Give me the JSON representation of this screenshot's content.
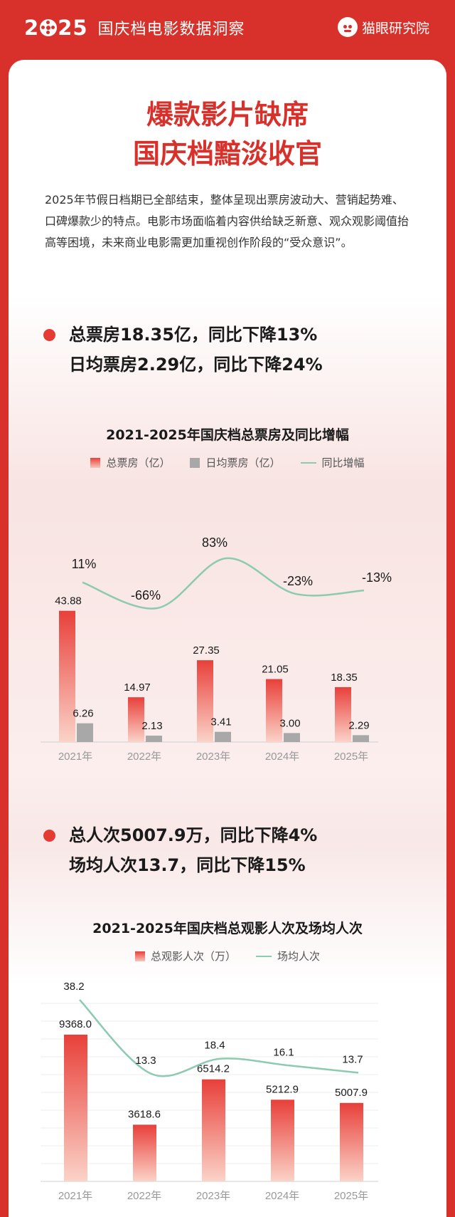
{
  "header": {
    "year": "2025",
    "year_parts": [
      "2",
      "25"
    ],
    "title": "国庆档电影数据洞察",
    "brand": "猫眼研究院"
  },
  "headline": {
    "line1": "爆款影片缺席",
    "line2": "国庆档黯淡收官"
  },
  "intro": "2025年节假日档期已全部结束，整体呈现出票房波动大、营销起势难、口碑爆款少的特点。电影市场面临着内容供给缺乏新意、观众观影阈值抬高等困境，未来商业电影需更加重视创作阶段的“受众意识”。",
  "section1": {
    "kpi1": "总票房18.35亿，同比下降13%",
    "kpi2": "日均票房2.29亿，同比下降24%"
  },
  "section2": {
    "kpi1": "总人次5007.9万，同比下降4%",
    "kpi2": "场均人次13.7，同比下降15%"
  },
  "colors": {
    "brand_red": "#d8312b",
    "bar_top": "#e8403a",
    "bar_bottom": "#fbd3c8",
    "grey_bar": "#a8a8a8",
    "line_green": "#8ccbb0"
  },
  "chart_data": [
    {
      "type": "bar",
      "title": "2021-2025年国庆档总票房及同比增幅",
      "categories": [
        "2021年",
        "2022年",
        "2023年",
        "2024年",
        "2025年"
      ],
      "series": [
        {
          "name": "总票房（亿）",
          "type": "bar",
          "values": [
            43.88,
            14.97,
            27.35,
            21.05,
            18.35
          ],
          "labels": [
            "43.88",
            "14.97",
            "27.35",
            "21.05",
            "18.35"
          ]
        },
        {
          "name": "日均票房（亿）",
          "type": "bar",
          "values": [
            6.26,
            2.13,
            3.41,
            3.0,
            2.29
          ],
          "labels": [
            "6.26",
            "2.13",
            "3.41",
            "3.00",
            "2.29"
          ]
        },
        {
          "name": "同比增幅",
          "type": "line",
          "values": [
            11,
            -66,
            83,
            -23,
            -13
          ],
          "labels": [
            "11%",
            "-66%",
            "83%",
            "-23%",
            "-13%"
          ]
        }
      ],
      "legend_position": "top",
      "grid": false
    },
    {
      "type": "bar",
      "title": "2021-2025年国庆档总观影人次及场均人次",
      "categories": [
        "2021年",
        "2022年",
        "2023年",
        "2024年",
        "2025年"
      ],
      "series": [
        {
          "name": "总观影人次（万）",
          "type": "bar",
          "values": [
            9368.0,
            3618.6,
            6514.2,
            5212.9,
            5007.9
          ],
          "labels": [
            "9368.0",
            "3618.6",
            "6514.2",
            "5212.9",
            "5007.9"
          ]
        },
        {
          "name": "场均人次",
          "type": "line",
          "values": [
            38.2,
            13.3,
            18.4,
            16.1,
            13.7
          ],
          "labels": [
            "38.2",
            "13.3",
            "18.4",
            "16.1",
            "13.7"
          ]
        }
      ],
      "legend_position": "top",
      "grid": true
    }
  ]
}
